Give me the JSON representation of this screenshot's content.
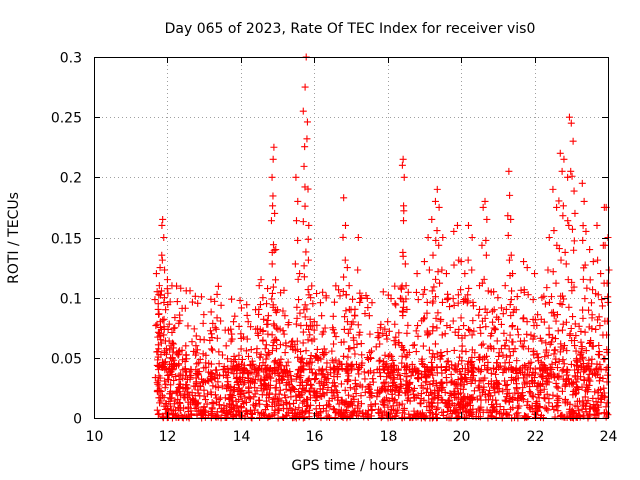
{
  "chart_data": {
    "type": "scatter",
    "title": "Day 065 of 2023, Rate Of TEC Index for receiver vis0",
    "xlabel": "GPS time / hours",
    "ylabel": "ROTI / TECUs",
    "xlim": [
      10,
      24
    ],
    "ylim": [
      0,
      0.3
    ],
    "xticks": [
      10,
      12,
      14,
      16,
      18,
      20,
      22,
      24
    ],
    "yticks": [
      0,
      0.05,
      0.1,
      0.15,
      0.2,
      0.25,
      0.3
    ],
    "xtick_labels": [
      "10",
      "12",
      "14",
      "16",
      "18",
      "20",
      "22",
      "24"
    ],
    "ytick_labels": [
      "0",
      "0.05",
      "0.1",
      "0.15",
      "0.2",
      "0.25",
      "0.3"
    ],
    "grid": true,
    "marker": "+",
    "series": [
      {
        "name": "ROTI",
        "color": "#ff0000",
        "points": [
          [
            11.7,
            0.12
          ],
          [
            11.72,
            0.105
          ],
          [
            11.75,
            0.095
          ],
          [
            11.78,
            0.11
          ],
          [
            11.8,
            0.125
          ],
          [
            11.85,
            0.16
          ],
          [
            11.87,
            0.165
          ],
          [
            11.9,
            0.15
          ],
          [
            11.92,
            0.1
          ],
          [
            11.95,
            0.09
          ],
          [
            12.0,
            0.115
          ],
          [
            12.05,
            0.078
          ],
          [
            12.1,
            0.06
          ],
          [
            12.2,
            0.075
          ],
          [
            12.3,
            0.055
          ],
          [
            12.5,
            0.06
          ],
          [
            12.8,
            0.045
          ],
          [
            13.0,
            0.065
          ],
          [
            13.2,
            0.07
          ],
          [
            13.4,
            0.055
          ],
          [
            13.6,
            0.06
          ],
          [
            13.8,
            0.08
          ],
          [
            14.0,
            0.07
          ],
          [
            14.2,
            0.08
          ],
          [
            14.4,
            0.09
          ],
          [
            14.5,
            0.11
          ],
          [
            14.55,
            0.115
          ],
          [
            14.6,
            0.1
          ],
          [
            14.7,
            0.095
          ],
          [
            14.75,
            0.085
          ],
          [
            14.85,
            0.2
          ],
          [
            14.88,
            0.215
          ],
          [
            14.9,
            0.225
          ],
          [
            14.92,
            0.17
          ],
          [
            14.95,
            0.14
          ],
          [
            15.0,
            0.09
          ],
          [
            15.2,
            0.085
          ],
          [
            15.5,
            0.2
          ],
          [
            15.55,
            0.18
          ],
          [
            15.6,
            0.12
          ],
          [
            15.7,
            0.255
          ],
          [
            15.75,
            0.275
          ],
          [
            15.78,
            0.3
          ],
          [
            15.8,
            0.232
          ],
          [
            15.85,
            0.16
          ],
          [
            15.9,
            0.1
          ],
          [
            16.0,
            0.08
          ],
          [
            16.2,
            0.085
          ],
          [
            16.5,
            0.075
          ],
          [
            16.8,
            0.183
          ],
          [
            16.85,
            0.16
          ],
          [
            16.9,
            0.125
          ],
          [
            16.95,
            0.11
          ],
          [
            17.0,
            0.09
          ],
          [
            17.2,
            0.15
          ],
          [
            17.5,
            0.085
          ],
          [
            17.8,
            0.075
          ],
          [
            18.0,
            0.08
          ],
          [
            18.2,
            0.095
          ],
          [
            18.4,
            0.21
          ],
          [
            18.42,
            0.215
          ],
          [
            18.45,
            0.2
          ],
          [
            18.5,
            0.11
          ],
          [
            18.8,
            0.12
          ],
          [
            19.0,
            0.13
          ],
          [
            19.1,
            0.15
          ],
          [
            19.2,
            0.165
          ],
          [
            19.3,
            0.18
          ],
          [
            19.35,
            0.19
          ],
          [
            19.4,
            0.175
          ],
          [
            19.5,
            0.15
          ],
          [
            19.6,
            0.12
          ],
          [
            19.8,
            0.155
          ],
          [
            19.9,
            0.16
          ],
          [
            20.0,
            0.13
          ],
          [
            20.1,
            0.12
          ],
          [
            20.2,
            0.16
          ],
          [
            20.3,
            0.15
          ],
          [
            20.5,
            0.11
          ],
          [
            20.6,
            0.175
          ],
          [
            20.65,
            0.18
          ],
          [
            20.7,
            0.165
          ],
          [
            20.9,
            0.09
          ],
          [
            21.0,
            0.1
          ],
          [
            21.2,
            0.11
          ],
          [
            21.3,
            0.205
          ],
          [
            21.32,
            0.185
          ],
          [
            21.35,
            0.165
          ],
          [
            21.4,
            0.12
          ],
          [
            21.5,
            0.09
          ],
          [
            21.7,
            0.13
          ],
          [
            21.8,
            0.125
          ],
          [
            22.0,
            0.12
          ],
          [
            22.2,
            0.1
          ],
          [
            22.4,
            0.15
          ],
          [
            22.5,
            0.19
          ],
          [
            22.6,
            0.175
          ],
          [
            22.7,
            0.22
          ],
          [
            22.75,
            0.205
          ],
          [
            22.8,
            0.215
          ],
          [
            22.9,
            0.2
          ],
          [
            22.95,
            0.25
          ],
          [
            23.0,
            0.245
          ],
          [
            23.05,
            0.23
          ],
          [
            23.1,
            0.17
          ],
          [
            23.3,
            0.195
          ],
          [
            23.35,
            0.18
          ],
          [
            23.4,
            0.155
          ],
          [
            23.5,
            0.14
          ],
          [
            23.6,
            0.13
          ],
          [
            23.7,
            0.16
          ],
          [
            23.8,
            0.12
          ],
          [
            23.9,
            0.175
          ],
          [
            23.95,
            0.175
          ],
          [
            24.0,
            0.15
          ]
        ],
        "dense_band": {
          "x_start": 11.7,
          "x_end": 24.0,
          "y_min": 0.0,
          "y_max": 0.04,
          "note": "continuous dense cluster of points near baseline"
        }
      }
    ]
  }
}
